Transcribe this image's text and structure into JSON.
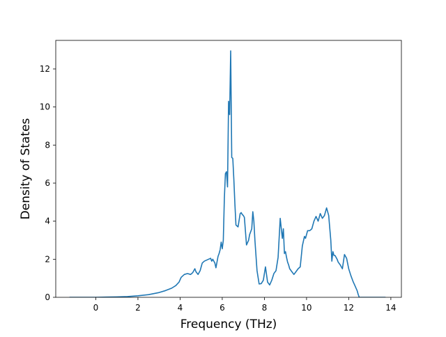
{
  "chart_data": {
    "type": "line",
    "title": "",
    "xlabel": "Frequency (THz)",
    "ylabel": "Density of States",
    "xlim": [
      -1.9,
      14.5
    ],
    "ylim": [
      0,
      13.5
    ],
    "x_ticks": [
      0,
      2,
      4,
      6,
      8,
      10,
      12,
      14
    ],
    "y_ticks": [
      0,
      2,
      4,
      6,
      8,
      10,
      12
    ],
    "x_tick_labels": [
      "0",
      "2",
      "4",
      "6",
      "8",
      "10",
      "12",
      "14"
    ],
    "y_tick_labels": [
      "0",
      "2",
      "4",
      "6",
      "8",
      "10",
      "12"
    ],
    "grid": false,
    "legend": "none",
    "color": "#1f77b4",
    "series": [
      {
        "x": [
          -1.25,
          -1.0,
          -0.5,
          0.0,
          0.5,
          1.0,
          1.5,
          2.0,
          2.5,
          3.0,
          3.3,
          3.6,
          3.8,
          3.95,
          4.05,
          4.2,
          4.35,
          4.5,
          4.6,
          4.7,
          4.75,
          4.85,
          4.95,
          5.05,
          5.15,
          5.25,
          5.35,
          5.45,
          5.5,
          5.55,
          5.65,
          5.7,
          5.8,
          5.85,
          5.9,
          5.95,
          6.0,
          6.05,
          6.1,
          6.15,
          6.2,
          6.25,
          6.3,
          6.35,
          6.4,
          6.45,
          6.5,
          6.55,
          6.6,
          6.65,
          6.75,
          6.85,
          6.9,
          6.95,
          7.0,
          7.05,
          7.15,
          7.25,
          7.3,
          7.4,
          7.45,
          7.5,
          7.55,
          7.65,
          7.75,
          7.85,
          7.95,
          8.05,
          8.15,
          8.25,
          8.35,
          8.45,
          8.55,
          8.65,
          8.75,
          8.85,
          8.9,
          8.95,
          9.0,
          9.05,
          9.1,
          9.15,
          9.2,
          9.3,
          9.4,
          9.5,
          9.6,
          9.7,
          9.8,
          9.9,
          9.95,
          10.05,
          10.15,
          10.25,
          10.35,
          10.45,
          10.55,
          10.65,
          10.75,
          10.85,
          10.95,
          11.05,
          11.15,
          11.2,
          11.25,
          11.3,
          11.35,
          11.4,
          11.45,
          11.5,
          11.6,
          11.7,
          11.8,
          11.9,
          12.0,
          12.1,
          12.2,
          12.3,
          12.4,
          12.45,
          12.5,
          12.6,
          13.0,
          13.5,
          13.75
        ],
        "values": [
          0.0,
          0.0,
          0.0,
          0.0,
          0.01,
          0.02,
          0.04,
          0.08,
          0.14,
          0.25,
          0.35,
          0.48,
          0.62,
          0.8,
          1.05,
          1.2,
          1.25,
          1.2,
          1.3,
          1.5,
          1.35,
          1.2,
          1.4,
          1.8,
          1.9,
          1.95,
          2.0,
          2.05,
          1.9,
          2.0,
          1.8,
          1.55,
          2.15,
          2.3,
          2.5,
          2.9,
          2.55,
          3.0,
          5.2,
          6.5,
          6.6,
          5.8,
          10.3,
          9.6,
          12.95,
          7.35,
          7.3,
          6.2,
          4.9,
          3.8,
          3.7,
          4.4,
          4.45,
          4.35,
          4.3,
          4.2,
          2.75,
          3.0,
          3.3,
          3.6,
          4.5,
          4.0,
          3.0,
          1.4,
          0.7,
          0.72,
          0.9,
          1.6,
          0.8,
          0.65,
          0.9,
          1.25,
          1.4,
          2.1,
          4.15,
          3.1,
          3.6,
          2.3,
          2.4,
          2.1,
          1.85,
          1.7,
          1.5,
          1.35,
          1.2,
          1.35,
          1.5,
          1.6,
          2.7,
          3.2,
          3.1,
          3.5,
          3.5,
          3.6,
          4.0,
          4.25,
          4.0,
          4.4,
          4.15,
          4.3,
          4.7,
          4.3,
          3.0,
          1.9,
          2.4,
          2.2,
          2.2,
          2.1,
          2.0,
          1.85,
          1.7,
          1.5,
          2.25,
          2.05,
          1.5,
          1.15,
          0.85,
          0.6,
          0.35,
          0.15,
          0.0,
          0.0,
          0.0,
          0.0,
          0.0
        ]
      }
    ]
  }
}
